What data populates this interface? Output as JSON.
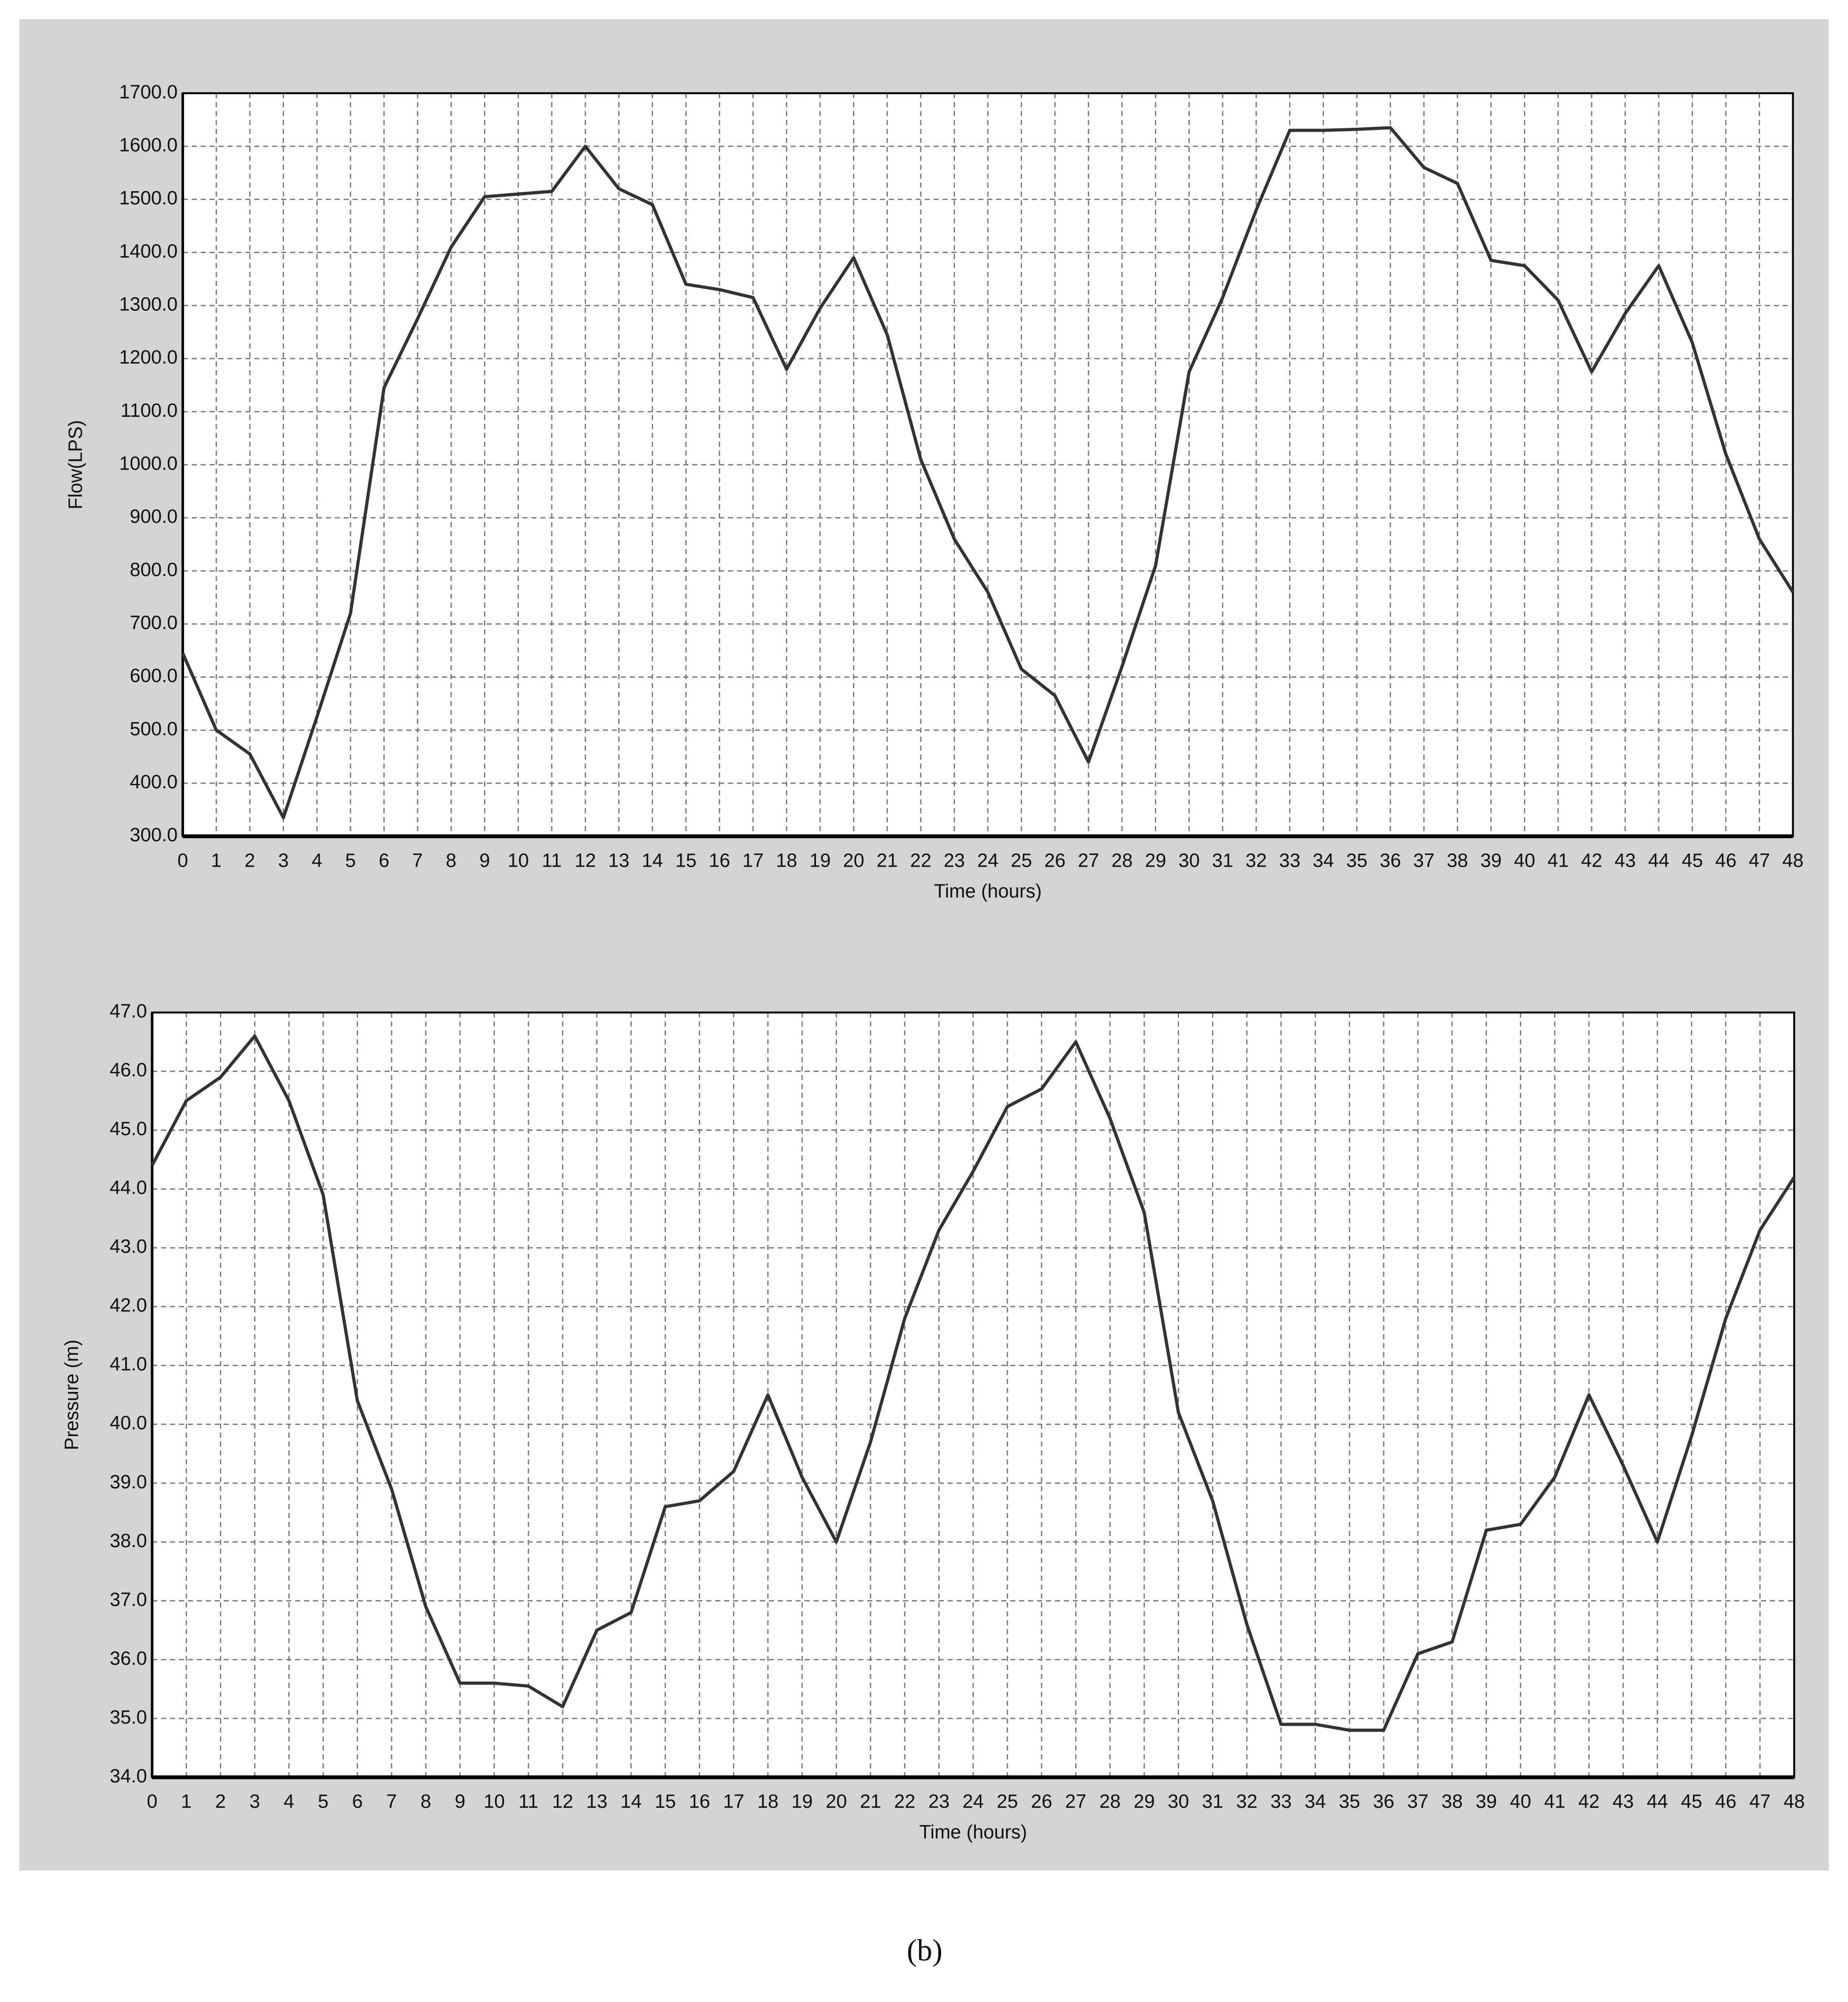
{
  "chart_data": [
    {
      "type": "line",
      "xlabel": "Time (hours)",
      "ylabel": "Flow(LPS)",
      "x": [
        0,
        1,
        2,
        3,
        4,
        5,
        6,
        7,
        8,
        9,
        10,
        11,
        12,
        13,
        14,
        15,
        16,
        17,
        18,
        19,
        20,
        21,
        22,
        23,
        24,
        25,
        26,
        27,
        28,
        29,
        30,
        31,
        32,
        33,
        34,
        35,
        36,
        37,
        38,
        39,
        40,
        41,
        42,
        43,
        44,
        45,
        46,
        47,
        48
      ],
      "values": [
        645,
        500,
        455,
        335,
        525,
        720,
        1145,
        1275,
        1410,
        1505,
        1510,
        1515,
        1600,
        1520,
        1490,
        1340,
        1330,
        1315,
        1180,
        1295,
        1390,
        1245,
        1010,
        860,
        760,
        615,
        565,
        440,
        620,
        810,
        1175,
        1315,
        1480,
        1630,
        1630,
        1632,
        1635,
        1560,
        1530,
        1385,
        1375,
        1310,
        1175,
        1285,
        1375,
        1230,
        1020,
        860,
        760
      ],
      "color": "#333333",
      "xlim": [
        0,
        48
      ],
      "xticks": [
        0,
        1,
        2,
        3,
        4,
        5,
        6,
        7,
        8,
        9,
        10,
        11,
        12,
        13,
        14,
        15,
        16,
        17,
        18,
        19,
        20,
        21,
        22,
        23,
        24,
        25,
        26,
        27,
        28,
        29,
        30,
        31,
        32,
        33,
        34,
        35,
        36,
        37,
        38,
        39,
        40,
        41,
        42,
        43,
        44,
        45,
        46,
        47,
        48
      ],
      "ylim": [
        300,
        1700
      ],
      "yticks": [
        {
          "value": 300,
          "label": "300.0"
        },
        {
          "value": 400,
          "label": "400.0"
        },
        {
          "value": 500,
          "label": "500.0"
        },
        {
          "value": 600,
          "label": "600.0"
        },
        {
          "value": 700,
          "label": "700.0"
        },
        {
          "value": 800,
          "label": "800.0"
        },
        {
          "value": 900,
          "label": "900.0"
        },
        {
          "value": 1000,
          "label": "1000.0"
        },
        {
          "value": 1100,
          "label": "1100.0"
        },
        {
          "value": 1200,
          "label": "1200.0"
        },
        {
          "value": 1300,
          "label": "1300.0"
        },
        {
          "value": 1400,
          "label": "1400.0"
        },
        {
          "value": 1500,
          "label": "1500.0"
        },
        {
          "value": 1600,
          "label": "1600.0"
        },
        {
          "value": 1700,
          "label": "1700.0"
        }
      ],
      "grid": true
    },
    {
      "type": "line",
      "xlabel": "Time (hours)",
      "ylabel": "Pressure (m)",
      "x": [
        0,
        1,
        2,
        3,
        4,
        5,
        6,
        7,
        8,
        9,
        10,
        11,
        12,
        13,
        14,
        15,
        16,
        17,
        18,
        19,
        20,
        21,
        22,
        23,
        24,
        25,
        26,
        27,
        28,
        29,
        30,
        31,
        32,
        33,
        34,
        35,
        36,
        37,
        38,
        39,
        40,
        41,
        42,
        43,
        44,
        45,
        46,
        47,
        48
      ],
      "values": [
        44.4,
        45.5,
        45.9,
        46.6,
        45.5,
        43.9,
        40.4,
        38.9,
        36.9,
        35.6,
        35.6,
        35.55,
        35.2,
        36.5,
        36.8,
        38.6,
        38.7,
        39.2,
        40.5,
        39.1,
        38.0,
        39.7,
        41.8,
        43.3,
        44.3,
        45.4,
        45.7,
        46.5,
        45.2,
        43.6,
        40.2,
        38.7,
        36.6,
        34.9,
        34.9,
        34.8,
        34.8,
        36.1,
        36.3,
        38.2,
        38.3,
        39.1,
        40.5,
        39.3,
        38.0,
        39.8,
        41.8,
        43.3,
        44.2
      ],
      "color": "#333333",
      "xlim": [
        0,
        48
      ],
      "xticks": [
        0,
        1,
        2,
        3,
        4,
        5,
        6,
        7,
        8,
        9,
        10,
        11,
        12,
        13,
        14,
        15,
        16,
        17,
        18,
        19,
        20,
        21,
        22,
        23,
        24,
        25,
        26,
        27,
        28,
        29,
        30,
        31,
        32,
        33,
        34,
        35,
        36,
        37,
        38,
        39,
        40,
        41,
        42,
        43,
        44,
        45,
        46,
        47,
        48
      ],
      "ylim": [
        34,
        47
      ],
      "yticks": [
        {
          "value": 34,
          "label": "34.0"
        },
        {
          "value": 35,
          "label": "35.0"
        },
        {
          "value": 36,
          "label": "36.0"
        },
        {
          "value": 37,
          "label": "37.0"
        },
        {
          "value": 38,
          "label": "38.0"
        },
        {
          "value": 39,
          "label": "39.0"
        },
        {
          "value": 40,
          "label": "40.0"
        },
        {
          "value": 41,
          "label": "41.0"
        },
        {
          "value": 42,
          "label": "42.0"
        },
        {
          "value": 43,
          "label": "43.0"
        },
        {
          "value": 44,
          "label": "44.0"
        },
        {
          "value": 45,
          "label": "45.0"
        },
        {
          "value": 46,
          "label": "46.0"
        },
        {
          "value": 47,
          "label": "47.0"
        }
      ],
      "grid": true
    }
  ],
  "caption": "(b)"
}
